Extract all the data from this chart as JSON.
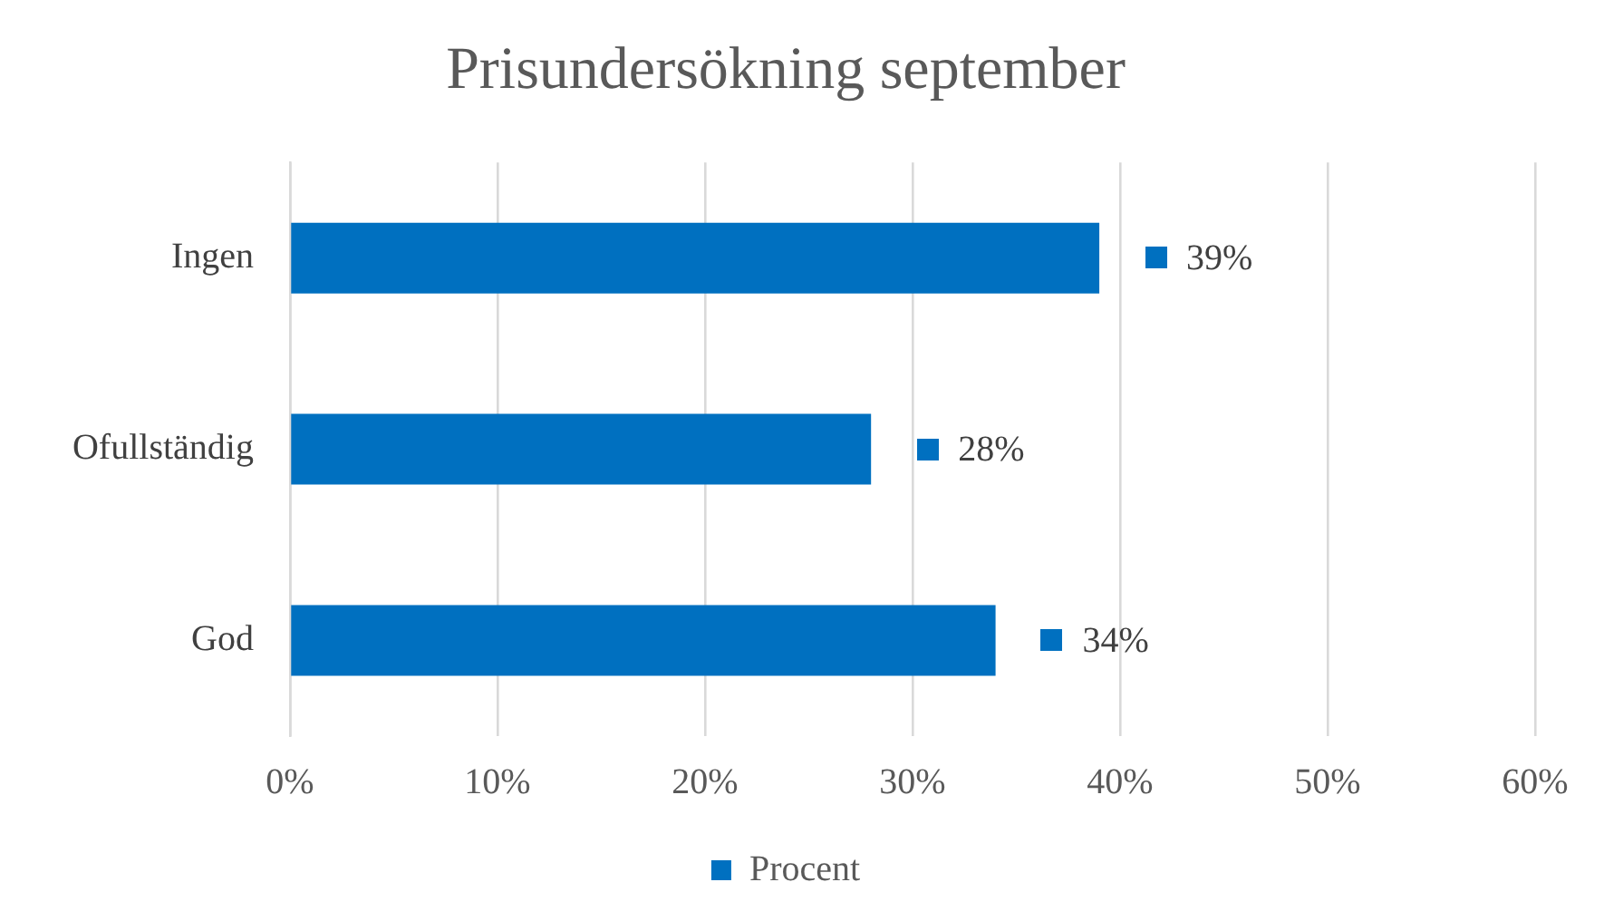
{
  "chart_data": {
    "type": "bar",
    "orientation": "horizontal",
    "title": "Prisundersökning september",
    "categories": [
      "Ingen",
      "Ofullständig",
      "God"
    ],
    "series": [
      {
        "name": "Procent",
        "color": "#0070c0",
        "values": [
          39,
          28,
          34
        ],
        "value_labels": [
          "39%",
          "28%",
          "34%"
        ]
      }
    ],
    "xlim": [
      0,
      60
    ],
    "xticks": [
      {
        "value": 0,
        "label": "0%"
      },
      {
        "value": 10,
        "label": "10%"
      },
      {
        "value": 20,
        "label": "20%"
      },
      {
        "value": 30,
        "label": "30%"
      },
      {
        "value": 40,
        "label": "40%"
      },
      {
        "value": 50,
        "label": "50%"
      },
      {
        "value": 60,
        "label": "60%"
      }
    ],
    "grid": "x",
    "legend": "bottom"
  }
}
